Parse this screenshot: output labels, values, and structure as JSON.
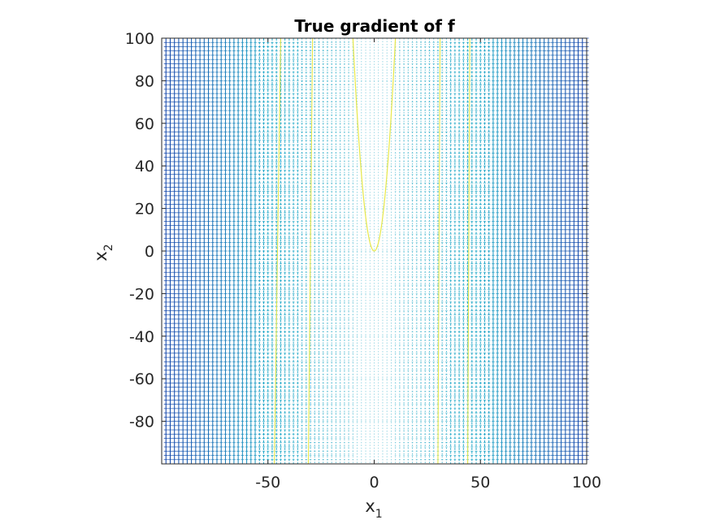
{
  "chart_data": {
    "type": "quiver",
    "title": "True gradient of f",
    "xlabel": {
      "base": "x",
      "sub": "1"
    },
    "ylabel": {
      "base": "x",
      "sub": "2"
    },
    "xlim": [
      -100,
      100
    ],
    "ylim": [
      -100,
      100
    ],
    "xticks": [
      -50,
      0,
      50,
      100
    ],
    "yticks": [
      100,
      80,
      60,
      40,
      20,
      0,
      -20,
      -40,
      -60,
      -80
    ],
    "grid": false,
    "legend": "none",
    "field": {
      "grid_step": 2,
      "x_range": [
        -98,
        100
      ],
      "y_range": [
        -98,
        100
      ],
      "direction": "vertical"
    },
    "curves": [
      {
        "kind": "parabola",
        "vertex_x": 0,
        "vertex_y": 0,
        "half_width_at_top": 10,
        "top_y": 100
      },
      {
        "kind": "segment",
        "x": [
          -47,
          -44
        ],
        "y": [
          -100,
          100
        ]
      },
      {
        "kind": "segment",
        "x": [
          -31,
          -29
        ],
        "y": [
          -100,
          100
        ]
      },
      {
        "kind": "segment",
        "x": [
          30,
          31
        ],
        "y": [
          -100,
          100
        ]
      },
      {
        "kind": "segment",
        "x": [
          44,
          45
        ],
        "y": [
          -100,
          100
        ]
      }
    ],
    "colors": {
      "field_far": "#0b3da8",
      "field_mid": "#20a8c8",
      "field_near": "#8fd3e0",
      "curve": "#e8e84a",
      "axes": "#262626"
    }
  }
}
